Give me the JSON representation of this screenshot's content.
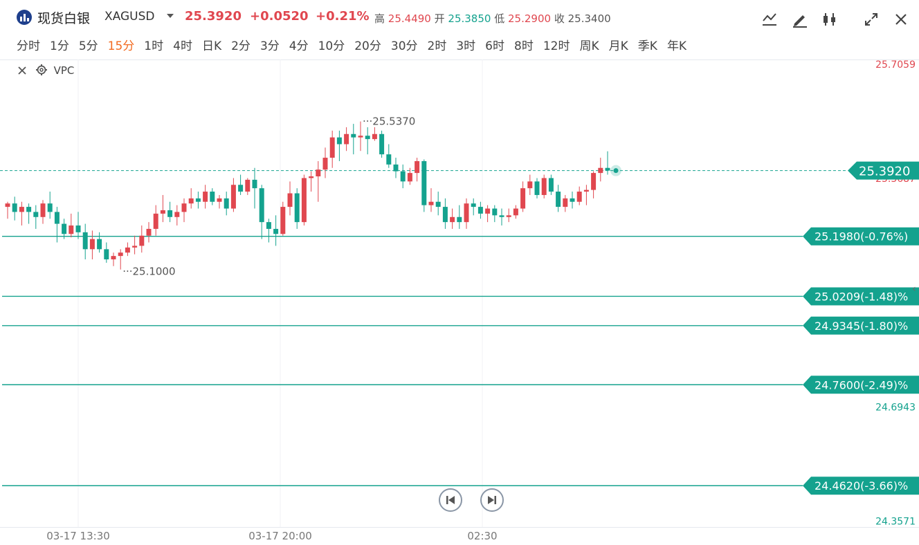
{
  "header": {
    "name_cn": "现货白银",
    "symbol": "XAGUSD",
    "last": "25.3920",
    "change": "+0.0520",
    "change_pct": "+0.21%",
    "high_label": "高",
    "high": "25.4490",
    "open_label": "开",
    "open": "25.3850",
    "low_label": "低",
    "low": "25.2900",
    "close_label": "收",
    "close": "25.3400"
  },
  "periods": [
    "分时",
    "1分",
    "5分",
    "15分",
    "1时",
    "4时",
    "日K",
    "2分",
    "3分",
    "4分",
    "10分",
    "20分",
    "30分",
    "2时",
    "3时",
    "6时",
    "8时",
    "12时",
    "周K",
    "月K",
    "季K",
    "年K"
  ],
  "active_period": "15分",
  "indicator": {
    "name": "VPC"
  },
  "icons": [
    "line-chart-icon",
    "draw-pen-icon",
    "candlestick-icon",
    "fullscreen-icon",
    "close-icon",
    "settings-gear-icon",
    "skip-back-icon",
    "skip-forward-icon",
    "watermark-logo"
  ],
  "colors": {
    "up": "#e0474f",
    "down": "#14a28e",
    "level": "#14a28e",
    "active": "#f26b21"
  },
  "chart_data": {
    "type": "candlestick",
    "x_ticks": [
      "03-17 13:30",
      "03-17 20:00",
      "02:30"
    ],
    "y_ticks_top": "25.7059",
    "y_ticks_right": [
      "25.3687",
      "24.6943",
      "24.3571"
    ],
    "ylim": [
      24.34,
      25.72
    ],
    "last_price": 25.392,
    "last_price_label": "25.3920",
    "max_label": "25.5370",
    "min_label": "25.1000",
    "levels": [
      {
        "price": 25.198,
        "label": "25.1980(-0.76%)"
      },
      {
        "price": 25.0209,
        "label": "25.0209(-1.48)%"
      },
      {
        "price": 24.9345,
        "label": "24.9345(-1.80)%"
      },
      {
        "price": 24.76,
        "label": "24.7600(-2.49)%"
      },
      {
        "price": 24.462,
        "label": "24.4620(-3.66)%"
      }
    ],
    "candles": [
      [
        25.285,
        25.3,
        25.25,
        25.295
      ],
      [
        25.295,
        25.315,
        25.245,
        25.27
      ],
      [
        25.27,
        25.3,
        25.23,
        25.285
      ],
      [
        25.285,
        25.295,
        25.235,
        25.27
      ],
      [
        25.27,
        25.29,
        25.22,
        25.255
      ],
      [
        25.255,
        25.305,
        25.235,
        25.295
      ],
      [
        25.295,
        25.33,
        25.25,
        25.27
      ],
      [
        25.27,
        25.285,
        25.18,
        25.235
      ],
      [
        25.235,
        25.25,
        25.19,
        25.205
      ],
      [
        25.205,
        25.265,
        25.195,
        25.23
      ],
      [
        25.23,
        25.27,
        25.19,
        25.21
      ],
      [
        25.21,
        25.235,
        25.13,
        25.16
      ],
      [
        25.16,
        25.215,
        25.13,
        25.19
      ],
      [
        25.19,
        25.21,
        25.15,
        25.16
      ],
      [
        25.16,
        25.18,
        25.12,
        25.13
      ],
      [
        25.13,
        25.15,
        25.11,
        25.14
      ],
      [
        25.14,
        25.16,
        25.1,
        25.15
      ],
      [
        25.15,
        25.18,
        25.14,
        25.165
      ],
      [
        25.165,
        25.2,
        25.145,
        25.17
      ],
      [
        25.17,
        25.23,
        25.15,
        25.2
      ],
      [
        25.2,
        25.24,
        25.18,
        25.22
      ],
      [
        25.22,
        25.29,
        25.2,
        25.265
      ],
      [
        25.265,
        25.32,
        25.24,
        25.275
      ],
      [
        25.275,
        25.3,
        25.24,
        25.255
      ],
      [
        25.255,
        25.29,
        25.23,
        25.27
      ],
      [
        25.27,
        25.31,
        25.24,
        25.295
      ],
      [
        25.295,
        25.34,
        25.28,
        25.31
      ],
      [
        25.31,
        25.33,
        25.28,
        25.3
      ],
      [
        25.3,
        25.35,
        25.28,
        25.33
      ],
      [
        25.33,
        25.34,
        25.29,
        25.3
      ],
      [
        25.3,
        25.32,
        25.28,
        25.31
      ],
      [
        25.31,
        25.33,
        25.26,
        25.28
      ],
      [
        25.28,
        25.37,
        25.27,
        25.35
      ],
      [
        25.35,
        25.38,
        25.32,
        25.33
      ],
      [
        25.33,
        25.37,
        25.32,
        25.365
      ],
      [
        25.365,
        25.4,
        25.28,
        25.34
      ],
      [
        25.34,
        25.35,
        25.19,
        25.24
      ],
      [
        25.24,
        25.25,
        25.18,
        25.22
      ],
      [
        25.22,
        25.26,
        25.17,
        25.205
      ],
      [
        25.205,
        25.3,
        25.2,
        25.285
      ],
      [
        25.285,
        25.36,
        25.26,
        25.325
      ],
      [
        25.325,
        25.34,
        25.22,
        25.24
      ],
      [
        25.24,
        25.38,
        25.23,
        25.37
      ],
      [
        25.37,
        25.39,
        25.33,
        25.375
      ],
      [
        25.375,
        25.42,
        25.3,
        25.395
      ],
      [
        25.395,
        25.46,
        25.37,
        25.43
      ],
      [
        25.43,
        25.51,
        25.4,
        25.49
      ],
      [
        25.49,
        25.51,
        25.42,
        25.47
      ],
      [
        25.47,
        25.52,
        25.45,
        25.5
      ],
      [
        25.5,
        25.53,
        25.44,
        25.49
      ],
      [
        25.49,
        25.537,
        25.45,
        25.495
      ],
      [
        25.495,
        25.52,
        25.44,
        25.485
      ],
      [
        25.485,
        25.52,
        25.48,
        25.5
      ],
      [
        25.5,
        25.51,
        25.43,
        25.44
      ],
      [
        25.44,
        25.47,
        25.4,
        25.41
      ],
      [
        25.41,
        25.43,
        25.37,
        25.39
      ],
      [
        25.39,
        25.41,
        25.34,
        25.36
      ],
      [
        25.36,
        25.4,
        25.35,
        25.385
      ],
      [
        25.385,
        25.43,
        25.36,
        25.42
      ],
      [
        25.42,
        25.425,
        25.27,
        25.29
      ],
      [
        25.29,
        25.34,
        25.27,
        25.3
      ],
      [
        25.3,
        25.33,
        25.26,
        25.285
      ],
      [
        25.285,
        25.31,
        25.22,
        25.24
      ],
      [
        25.24,
        25.28,
        25.22,
        25.255
      ],
      [
        25.255,
        25.29,
        25.22,
        25.24
      ],
      [
        25.24,
        25.31,
        25.22,
        25.295
      ],
      [
        25.295,
        25.31,
        25.26,
        25.285
      ],
      [
        25.285,
        25.3,
        25.25,
        25.265
      ],
      [
        25.265,
        25.29,
        25.24,
        25.28
      ],
      [
        25.28,
        25.29,
        25.24,
        25.26
      ],
      [
        25.26,
        25.28,
        25.23,
        25.255
      ],
      [
        25.255,
        25.28,
        25.24,
        25.26
      ],
      [
        25.26,
        25.29,
        25.25,
        25.28
      ],
      [
        25.28,
        25.36,
        25.27,
        25.34
      ],
      [
        25.34,
        25.38,
        25.32,
        25.36
      ],
      [
        25.36,
        25.37,
        25.31,
        25.32
      ],
      [
        25.32,
        25.38,
        25.31,
        25.37
      ],
      [
        25.37,
        25.38,
        25.32,
        25.33
      ],
      [
        25.33,
        25.35,
        25.27,
        25.285
      ],
      [
        25.285,
        25.32,
        25.27,
        25.31
      ],
      [
        25.31,
        25.33,
        25.28,
        25.3
      ],
      [
        25.3,
        25.345,
        25.29,
        25.33
      ],
      [
        25.33,
        25.35,
        25.29,
        25.335
      ],
      [
        25.335,
        25.39,
        25.31,
        25.385
      ],
      [
        25.385,
        25.43,
        25.36,
        25.4
      ],
      [
        25.4,
        25.449,
        25.38,
        25.392
      ]
    ]
  }
}
